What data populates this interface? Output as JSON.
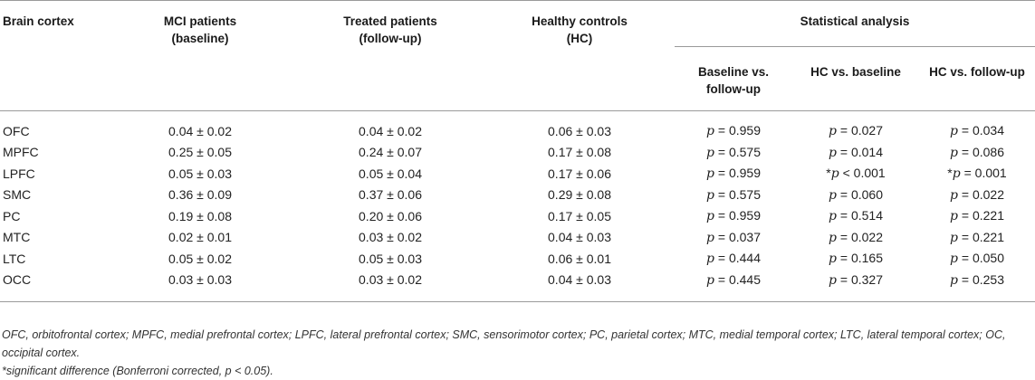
{
  "table": {
    "headers": {
      "brain_cortex": "Brain cortex",
      "mci": [
        "MCI patients",
        "(baseline)"
      ],
      "treated": [
        "Treated patients",
        "(follow-up)"
      ],
      "hc": [
        "Healthy controls",
        "(HC)"
      ],
      "stat": "Statistical analysis",
      "sub1": [
        "Baseline vs.",
        "follow-up"
      ],
      "sub2": "HC vs. baseline",
      "sub3": "HC vs. follow-up"
    },
    "rows": [
      {
        "region": "OFC",
        "mci": "0.04 ± 0.02",
        "treated": "0.04 ± 0.02",
        "hc": "0.06 ± 0.03",
        "p1": "= 0.959",
        "p2": "= 0.027",
        "p2_star": "",
        "p3": "= 0.034",
        "p3_star": ""
      },
      {
        "region": "MPFC",
        "mci": "0.25 ± 0.05",
        "treated": "0.24 ± 0.07",
        "hc": "0.17 ± 0.08",
        "p1": "= 0.575",
        "p2": "= 0.014",
        "p2_star": "",
        "p3": "= 0.086",
        "p3_star": ""
      },
      {
        "region": "LPFC",
        "mci": "0.05 ± 0.03",
        "treated": "0.05 ± 0.04",
        "hc": "0.17 ± 0.06",
        "p1": "= 0.959",
        "p2": "< 0.001",
        "p2_star": "*",
        "p3": "= 0.001",
        "p3_star": "*"
      },
      {
        "region": "SMC",
        "mci": "0.36 ± 0.09",
        "treated": "0.37 ± 0.06",
        "hc": "0.29 ± 0.08",
        "p1": "= 0.575",
        "p2": "= 0.060",
        "p2_star": "",
        "p3": "= 0.022",
        "p3_star": ""
      },
      {
        "region": "PC",
        "mci": "0.19 ± 0.08",
        "treated": "0.20 ± 0.06",
        "hc": "0.17 ± 0.05",
        "p1": "= 0.959",
        "p2": "= 0.514",
        "p2_star": "",
        "p3": "= 0.221",
        "p3_star": ""
      },
      {
        "region": "MTC",
        "mci": "0.02 ± 0.01",
        "treated": "0.03 ± 0.02",
        "hc": "0.04 ± 0.03",
        "p1": "= 0.037",
        "p2": "= 0.022",
        "p2_star": "",
        "p3": "= 0.221",
        "p3_star": ""
      },
      {
        "region": "LTC",
        "mci": "0.05 ± 0.02",
        "treated": "0.05 ± 0.03",
        "hc": "0.06 ± 0.01",
        "p1": "= 0.444",
        "p2": "= 0.165",
        "p2_star": "",
        "p3": "= 0.050",
        "p3_star": ""
      },
      {
        "region": "OCC",
        "mci": "0.03 ± 0.03",
        "treated": "0.03 ± 0.02",
        "hc": "0.04 ± 0.03",
        "p1": "= 0.445",
        "p2": "= 0.327",
        "p2_star": "",
        "p3": "= 0.253",
        "p3_star": ""
      }
    ],
    "p_symbol": "p"
  },
  "footnotes": {
    "abbreviations": "OFC, orbitofrontal cortex; MPFC, medial prefrontal cortex; LPFC, lateral prefrontal cortex; SMC, sensorimotor cortex; PC, parietal cortex; MTC, medial temporal cortex; LTC, lateral temporal cortex; OC, occipital cortex.",
    "significance": "*significant difference (Bonferroni corrected, p < 0.05)."
  }
}
